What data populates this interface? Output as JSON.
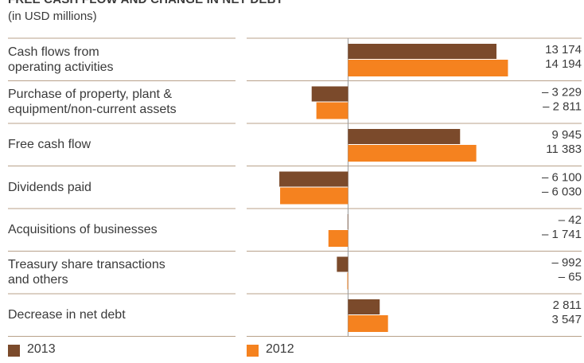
{
  "chart_data": {
    "type": "hbar",
    "title": "FREE CASH FLOW AND CHANGE IN NET DEBT",
    "subtitle": "(in USD millions)",
    "categories": [
      "Cash flows from\noperating activities",
      "Purchase of property, plant &\nequipment/non-current assets",
      "Free cash flow",
      "Dividends paid",
      "Acquisitions of businesses",
      "Treasury share transactions\nand others",
      "Decrease in net debt"
    ],
    "series": [
      {
        "name": "2013",
        "color": "#7b4a2b",
        "values": [
          13174,
          -3229,
          9945,
          -6100,
          -42,
          -992,
          2811
        ],
        "value_labels": [
          "13 174",
          "– 3 229",
          "9 945",
          "– 6 100",
          "– 42",
          "– 992",
          "2 811"
        ]
      },
      {
        "name": "2012",
        "color": "#f5821f",
        "values": [
          14194,
          -2811,
          11383,
          -6030,
          -1741,
          -65,
          3547
        ],
        "value_labels": [
          "14 194",
          "– 2 811",
          "11 383",
          "– 6 030",
          "– 1 741",
          "– 65",
          "3 547"
        ]
      }
    ],
    "xlim": [
      -9000,
      16000
    ]
  }
}
